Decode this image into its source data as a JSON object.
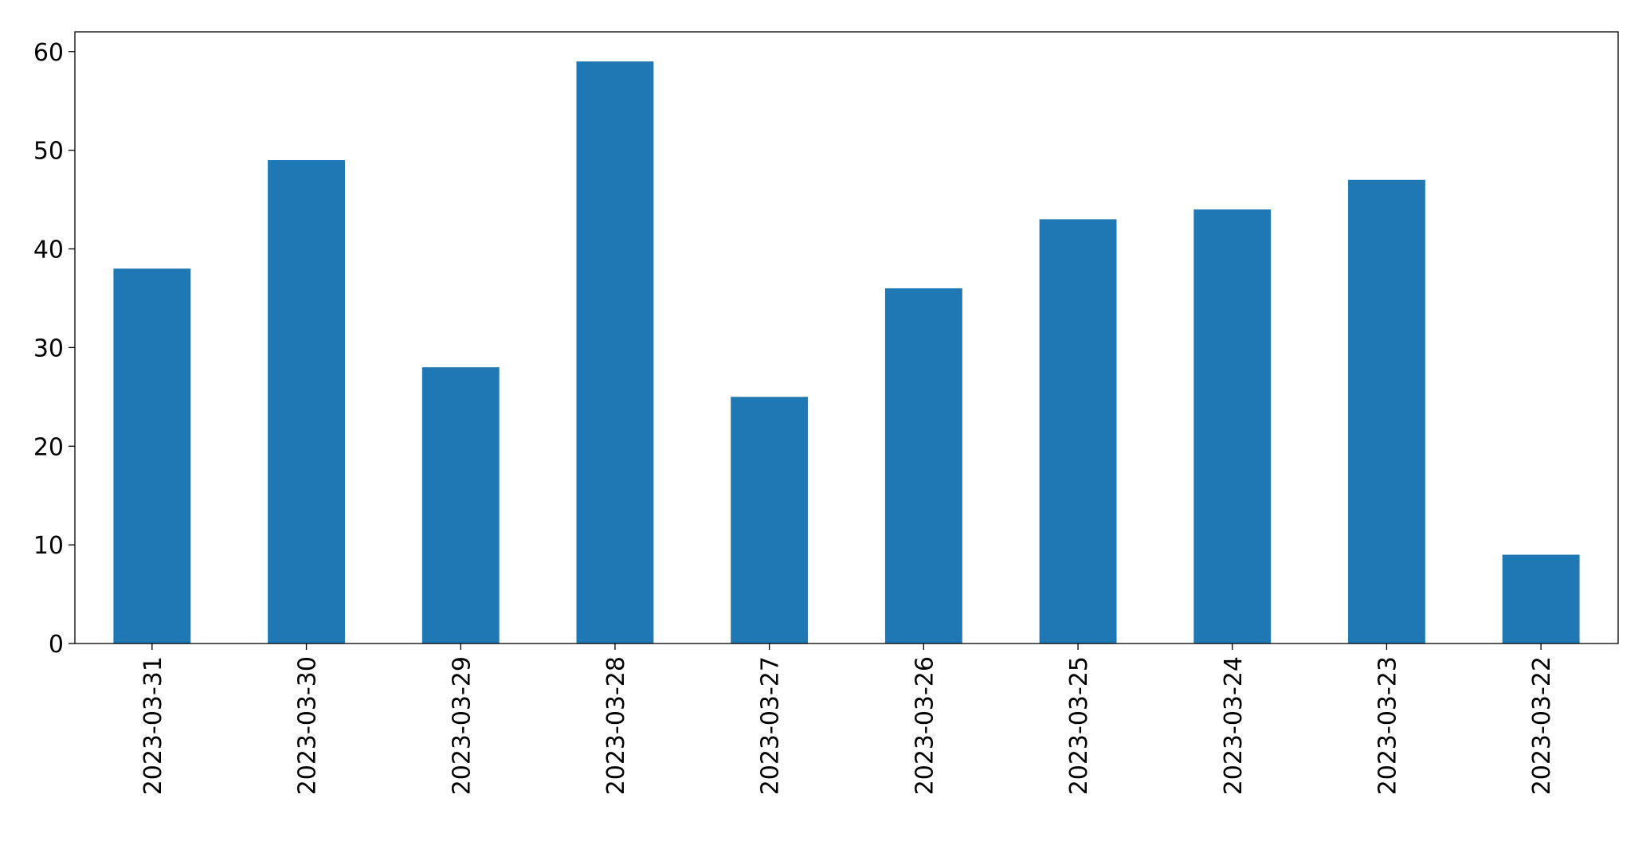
{
  "chart_data": {
    "type": "bar",
    "categories": [
      "2023-03-31",
      "2023-03-30",
      "2023-03-29",
      "2023-03-28",
      "2023-03-27",
      "2023-03-26",
      "2023-03-25",
      "2023-03-24",
      "2023-03-23",
      "2023-03-22"
    ],
    "values": [
      38,
      49,
      28,
      59,
      25,
      36,
      43,
      44,
      47,
      9
    ],
    "color": "#1f77b4",
    "ylim": [
      0,
      62
    ],
    "yticks": [
      0,
      10,
      20,
      30,
      40,
      50,
      60
    ],
    "grid": false
  }
}
